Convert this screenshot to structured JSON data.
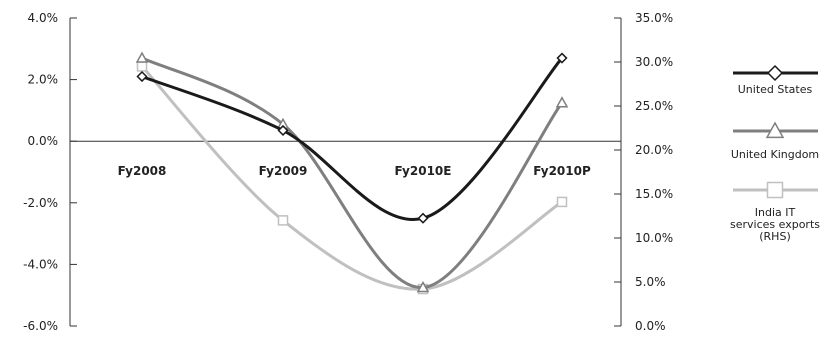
{
  "chart_data": {
    "type": "line",
    "categories": [
      "Fy2008",
      "Fy2009",
      "Fy2010E",
      "Fy2010P"
    ],
    "left_axis": {
      "ylim": [
        -6.0,
        4.0
      ],
      "ticks": [
        4.0,
        2.0,
        0.0,
        -2.0,
        -4.0,
        -6.0
      ],
      "tick_labels": [
        "4.0%",
        "2.0%",
        "0.0%",
        "-2.0%",
        "-4.0%",
        "-6.0%"
      ]
    },
    "right_axis": {
      "ylim": [
        0.0,
        35.0
      ],
      "ticks": [
        35,
        30,
        25,
        20,
        15,
        10,
        5,
        0
      ],
      "tick_labels": [
        "35.0%",
        "30.0%",
        "25.0%",
        "20.0%",
        "15.0%",
        "10.0%",
        "5.0%",
        "0.0%"
      ]
    },
    "series": [
      {
        "name": "United States",
        "axis": "left",
        "marker": "diamond",
        "color": "#1a1a1a",
        "values": [
          2.1,
          0.35,
          -2.5,
          2.7
        ]
      },
      {
        "name": "United Kingdom",
        "axis": "left",
        "marker": "triangle",
        "color": "#7f7f7f",
        "values": [
          2.7,
          0.55,
          -4.75,
          1.25
        ]
      },
      {
        "name": "India IT services exports (RHS)",
        "name_lines": [
          "India IT",
          "services exports",
          "(RHS)"
        ],
        "axis": "right",
        "marker": "square",
        "color": "#c0c0c0",
        "values": [
          29.5,
          12.0,
          4.2,
          14.1
        ]
      }
    ],
    "legend_position": "right",
    "grid": false
  }
}
